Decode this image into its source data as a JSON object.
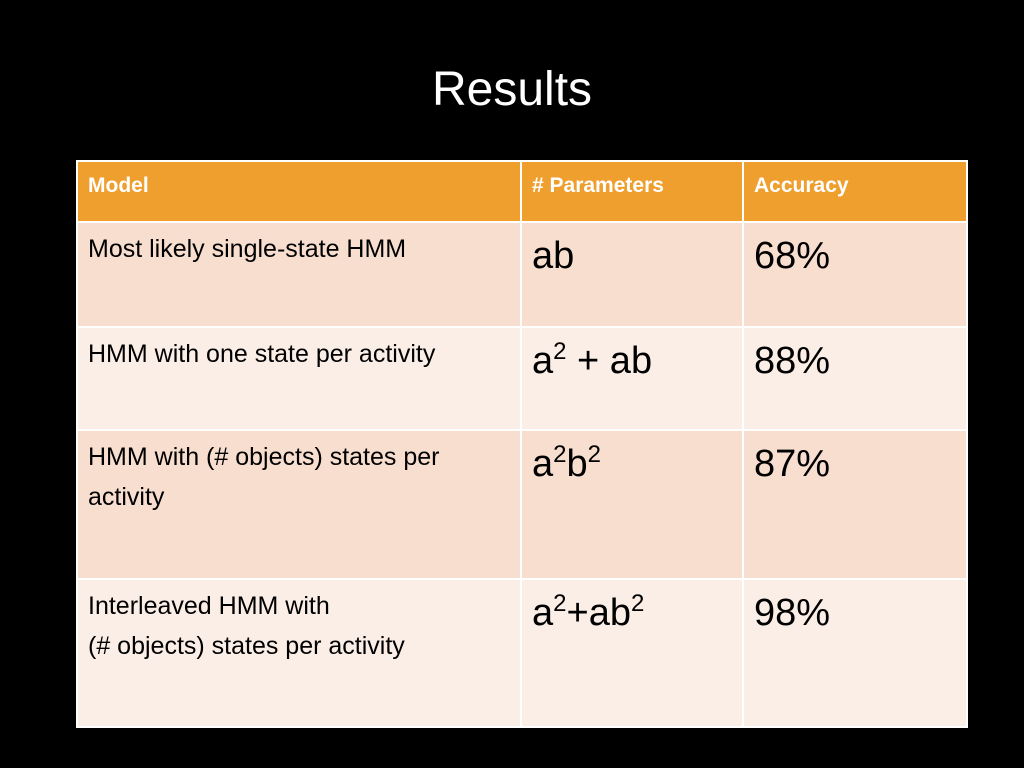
{
  "title": "Results",
  "table": {
    "header": [
      "Model",
      "# Parameters",
      "Accuracy"
    ],
    "rows": [
      {
        "model": "Most likely single-state HMM",
        "parameters": [
          {
            "text": "ab"
          }
        ],
        "accuracy": "68%"
      },
      {
        "model": "HMM with one state per activity",
        "parameters": [
          {
            "text": "a"
          },
          {
            "sup": "2"
          },
          {
            "text": " + ab"
          }
        ],
        "accuracy": "88%"
      },
      {
        "model": "HMM with (# objects) states per activity",
        "parameters": [
          {
            "text": "a"
          },
          {
            "sup": "2"
          },
          {
            "text": "b"
          },
          {
            "sup": "2"
          }
        ],
        "accuracy": "87%"
      },
      {
        "model": "Interleaved HMM with\n(# objects) states per activity",
        "parameters": [
          {
            "text": "a"
          },
          {
            "sup": "2"
          },
          {
            "text": "+ab"
          },
          {
            "sup": "2"
          }
        ],
        "accuracy": "98%"
      }
    ]
  }
}
